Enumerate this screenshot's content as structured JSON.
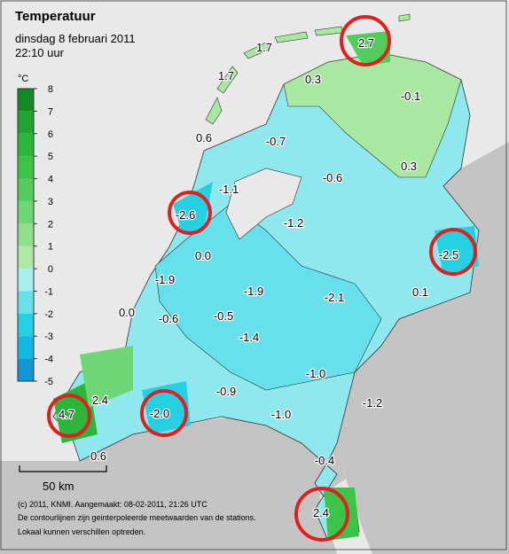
{
  "header": {
    "title": "Temperatuur",
    "date": "dinsdag 8 februari 2011",
    "time": "22:10 uur"
  },
  "legend": {
    "unit": "°C",
    "ticks": [
      8,
      7,
      6,
      5,
      4,
      3,
      2,
      1,
      0,
      -1,
      -2,
      -3,
      -4,
      -5
    ],
    "colors": [
      "#148a26",
      "#1fa331",
      "#2bb53b",
      "#3cc448",
      "#52cd5c",
      "#6fd675",
      "#8fdf8c",
      "#aee9a6",
      "#a8f0f0",
      "#66e0ea",
      "#25d0e2",
      "#12b8e0",
      "#1098d6"
    ]
  },
  "stations": [
    "1.7",
    "2.7",
    "1.7",
    "0.3",
    "-0.1",
    "0.6",
    "-0.7",
    "0.3",
    "-0.6",
    "-1.1",
    "-2.6",
    "-1.2",
    "-2.5",
    "0.0",
    "-1.9",
    "0.1",
    "-1.9",
    "-2.1",
    "0.0",
    "-0.6",
    "-0.5",
    "-1.4",
    "-1.0",
    "-0.9",
    "-1.2",
    "2.4",
    "-2.0",
    "-1.0",
    "4.7",
    "0.6",
    "-0.4",
    "2.4"
  ],
  "scale": "50 km",
  "footer": [
    "(c) 2011, KNMI. Aangemaakt: 08-02-2011, 21:26 UTC",
    "De contourlijnen zijn geinterpoleerde meetwaarden van de stations.",
    "Lokaal kunnen verschillen optreden."
  ]
}
